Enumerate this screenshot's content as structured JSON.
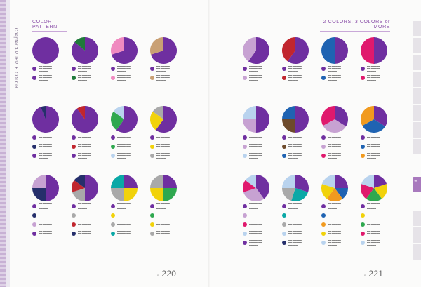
{
  "left_title": "COLOR PATTERN",
  "right_title": "2 COLORS, 3 COLORS or MORE",
  "spine_text": "Chapter 3  PURPLE COLOR",
  "side_tab": "紫",
  "page_left": "220",
  "page_right": "221",
  "colors": {
    "purple": "#6f2fa0",
    "green_dark": "#1f7a3a",
    "pink": "#f08ac0",
    "tan": "#c9a074",
    "navy": "#252f6b",
    "red": "#c1262e",
    "green_light": "#2fa84f",
    "yellow": "#f1d20a",
    "gray": "#a9a9a9",
    "sky": "#b9d3ee",
    "blue": "#1f63b2",
    "magenta": "#e0196d",
    "brown": "#6d4a2b",
    "lilac": "#c7a2d2",
    "teal": "#0aa8a6",
    "orange": "#f19a1f"
  },
  "left_rows": [
    [
      {
        "slices": [
          {
            "c": "purple",
            "v": 1
          }
        ],
        "swatches": [
          "purple",
          "purple"
        ]
      },
      {
        "slices": [
          {
            "c": "purple",
            "v": 0.86
          },
          {
            "c": "green_dark",
            "v": 0.14
          }
        ],
        "swatches": [
          "purple",
          "green_dark"
        ]
      },
      {
        "slices": [
          {
            "c": "purple",
            "v": 0.7
          },
          {
            "c": "pink",
            "v": 0.3
          }
        ],
        "swatches": [
          "purple",
          "pink"
        ]
      },
      {
        "slices": [
          {
            "c": "purple",
            "v": 0.7
          },
          {
            "c": "tan",
            "v": 0.3
          }
        ],
        "swatches": [
          "purple",
          "tan"
        ]
      }
    ],
    [
      {
        "slices": [
          {
            "c": "purple",
            "v": 0.94
          },
          {
            "c": "navy",
            "v": 0.06
          }
        ],
        "swatches": [
          "purple",
          "navy",
          "purple"
        ]
      },
      {
        "slices": [
          {
            "c": "purple",
            "v": 0.9
          },
          {
            "c": "red",
            "v": 0.1
          }
        ],
        "swatches": [
          "purple",
          "red",
          "purple"
        ]
      },
      {
        "slices": [
          {
            "c": "purple",
            "v": 0.6
          },
          {
            "c": "green_light",
            "v": 0.25
          },
          {
            "c": "sky",
            "v": 0.15
          }
        ],
        "swatches": [
          "purple",
          "green_light",
          "sky"
        ]
      },
      {
        "slices": [
          {
            "c": "purple",
            "v": 0.6
          },
          {
            "c": "yellow",
            "v": 0.25
          },
          {
            "c": "gray",
            "v": 0.15
          }
        ],
        "swatches": [
          "purple",
          "yellow",
          "gray"
        ]
      }
    ],
    [
      {
        "slices": [
          {
            "c": "purple",
            "v": 0.5
          },
          {
            "c": "navy",
            "v": 0.25
          },
          {
            "c": "lilac",
            "v": 0.25
          }
        ],
        "swatches": [
          "purple",
          "navy",
          "lilac",
          "purple"
        ]
      },
      {
        "slices": [
          {
            "c": "purple",
            "v": 0.5
          },
          {
            "c": "gray",
            "v": 0.2
          },
          {
            "c": "red",
            "v": 0.15
          },
          {
            "c": "navy",
            "v": 0.15
          }
        ],
        "swatches": [
          "purple",
          "gray",
          "red",
          "navy"
        ]
      },
      {
        "slices": [
          {
            "c": "purple",
            "v": 0.25
          },
          {
            "c": "yellow",
            "v": 0.25
          },
          {
            "c": "gray",
            "v": 0.25
          },
          {
            "c": "teal",
            "v": 0.25
          }
        ],
        "swatches": [
          "purple",
          "yellow",
          "gray",
          "teal"
        ]
      },
      {
        "slices": [
          {
            "c": "purple",
            "v": 0.25
          },
          {
            "c": "green_light",
            "v": 0.25
          },
          {
            "c": "yellow",
            "v": 0.25
          },
          {
            "c": "gray",
            "v": 0.25
          }
        ],
        "swatches": [
          "purple",
          "green_light",
          "yellow",
          "gray"
        ]
      }
    ]
  ],
  "right_rows": [
    [
      {
        "slices": [
          {
            "c": "purple",
            "v": 0.6
          },
          {
            "c": "lilac",
            "v": 0.4
          }
        ],
        "swatches": [
          "purple",
          "lilac"
        ]
      },
      {
        "slices": [
          {
            "c": "purple",
            "v": 0.6
          },
          {
            "c": "red",
            "v": 0.4
          }
        ],
        "swatches": [
          "purple",
          "red"
        ]
      },
      {
        "slices": [
          {
            "c": "purple",
            "v": 0.5
          },
          {
            "c": "blue",
            "v": 0.5
          }
        ],
        "swatches": [
          "purple",
          "blue"
        ]
      },
      {
        "slices": [
          {
            "c": "purple",
            "v": 0.5
          },
          {
            "c": "magenta",
            "v": 0.5
          }
        ],
        "swatches": [
          "purple",
          "magenta"
        ]
      }
    ],
    [
      {
        "slices": [
          {
            "c": "purple",
            "v": 0.5
          },
          {
            "c": "lilac",
            "v": 0.25
          },
          {
            "c": "sky",
            "v": 0.25
          }
        ],
        "swatches": [
          "purple",
          "lilac",
          "sky"
        ]
      },
      {
        "slices": [
          {
            "c": "purple",
            "v": 0.5
          },
          {
            "c": "brown",
            "v": 0.25
          },
          {
            "c": "blue",
            "v": 0.25
          }
        ],
        "swatches": [
          "purple",
          "brown",
          "blue"
        ]
      },
      {
        "slices": [
          {
            "c": "purple",
            "v": 0.34
          },
          {
            "c": "lilac",
            "v": 0.33
          },
          {
            "c": "magenta",
            "v": 0.33
          }
        ],
        "swatches": [
          "purple",
          "lilac",
          "magenta"
        ]
      },
      {
        "slices": [
          {
            "c": "purple",
            "v": 0.34
          },
          {
            "c": "blue",
            "v": 0.33
          },
          {
            "c": "orange",
            "v": 0.33
          }
        ],
        "swatches": [
          "purple",
          "blue",
          "orange"
        ]
      }
    ],
    [
      {
        "slices": [
          {
            "c": "purple",
            "v": 0.4
          },
          {
            "c": "lilac",
            "v": 0.3
          },
          {
            "c": "magenta",
            "v": 0.15
          },
          {
            "c": "sky",
            "v": 0.15
          }
        ],
        "swatches": [
          "purple",
          "lilac",
          "magenta",
          "sky",
          "purple"
        ]
      },
      {
        "slices": [
          {
            "c": "purple",
            "v": 0.3
          },
          {
            "c": "teal",
            "v": 0.25
          },
          {
            "c": "gray",
            "v": 0.2
          },
          {
            "c": "sky",
            "v": 0.25
          }
        ],
        "swatches": [
          "purple",
          "teal",
          "gray",
          "sky",
          "navy"
        ]
      },
      {
        "slices": [
          {
            "c": "purple",
            "v": 0.25
          },
          {
            "c": "blue",
            "v": 0.15
          },
          {
            "c": "orange",
            "v": 0.2
          },
          {
            "c": "yellow",
            "v": 0.2
          },
          {
            "c": "sky",
            "v": 0.2
          }
        ],
        "swatches": [
          "purple",
          "blue",
          "orange",
          "yellow",
          "sky"
        ]
      },
      {
        "slices": [
          {
            "c": "purple",
            "v": 0.2
          },
          {
            "c": "yellow",
            "v": 0.2
          },
          {
            "c": "green_light",
            "v": 0.2
          },
          {
            "c": "magenta",
            "v": 0.2
          },
          {
            "c": "sky",
            "v": 0.2
          }
        ],
        "swatches": [
          "purple",
          "yellow",
          "green_light",
          "magenta",
          "sky"
        ]
      }
    ]
  ]
}
